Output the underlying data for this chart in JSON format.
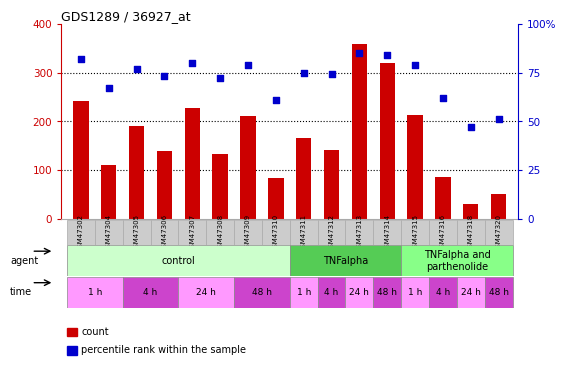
{
  "title": "GDS1289 / 36927_at",
  "samples": [
    "GSM47302",
    "GSM47304",
    "GSM47305",
    "GSM47306",
    "GSM47307",
    "GSM47308",
    "GSM47309",
    "GSM47310",
    "GSM47311",
    "GSM47312",
    "GSM47313",
    "GSM47314",
    "GSM47315",
    "GSM47316",
    "GSM47318",
    "GSM47320"
  ],
  "counts": [
    242,
    110,
    190,
    140,
    228,
    133,
    210,
    83,
    165,
    142,
    358,
    320,
    213,
    85,
    30,
    50
  ],
  "percentiles": [
    82,
    67,
    77,
    73,
    80,
    72,
    79,
    61,
    75,
    74,
    85,
    84,
    79,
    62,
    47,
    51
  ],
  "bar_color": "#cc0000",
  "dot_color": "#0000cc",
  "ylim_left": [
    0,
    400
  ],
  "ylim_right": [
    0,
    100
  ],
  "yticks_left": [
    0,
    100,
    200,
    300,
    400
  ],
  "yticks_right": [
    0,
    25,
    50,
    75,
    100
  ],
  "agent_groups": [
    {
      "label": "control",
      "start": 0,
      "end": 7,
      "color": "#ccffcc"
    },
    {
      "label": "TNFalpha",
      "start": 8,
      "end": 11,
      "color": "#55cc55"
    },
    {
      "label": "TNFalpha and\nparthenolide",
      "start": 12,
      "end": 15,
      "color": "#88ff88"
    }
  ],
  "time_groups": [
    {
      "label": "1 h",
      "start": 0,
      "end": 1,
      "color": "#ff99ff"
    },
    {
      "label": "4 h",
      "start": 2,
      "end": 3,
      "color": "#cc44cc"
    },
    {
      "label": "24 h",
      "start": 4,
      "end": 5,
      "color": "#ff99ff"
    },
    {
      "label": "48 h",
      "start": 6,
      "end": 7,
      "color": "#cc44cc"
    },
    {
      "label": "1 h",
      "start": 8,
      "end": 8,
      "color": "#ff99ff"
    },
    {
      "label": "4 h",
      "start": 9,
      "end": 9,
      "color": "#cc44cc"
    },
    {
      "label": "24 h",
      "start": 10,
      "end": 10,
      "color": "#ff99ff"
    },
    {
      "label": "48 h",
      "start": 11,
      "end": 11,
      "color": "#cc44cc"
    },
    {
      "label": "1 h",
      "start": 12,
      "end": 12,
      "color": "#ff99ff"
    },
    {
      "label": "4 h",
      "start": 13,
      "end": 13,
      "color": "#cc44cc"
    },
    {
      "label": "24 h",
      "start": 14,
      "end": 14,
      "color": "#ff99ff"
    },
    {
      "label": "48 h",
      "start": 15,
      "end": 15,
      "color": "#cc44cc"
    }
  ],
  "tick_color_left": "#cc0000",
  "tick_color_right": "#0000cc",
  "sample_bg": "#cccccc",
  "sample_border": "#aaaaaa"
}
